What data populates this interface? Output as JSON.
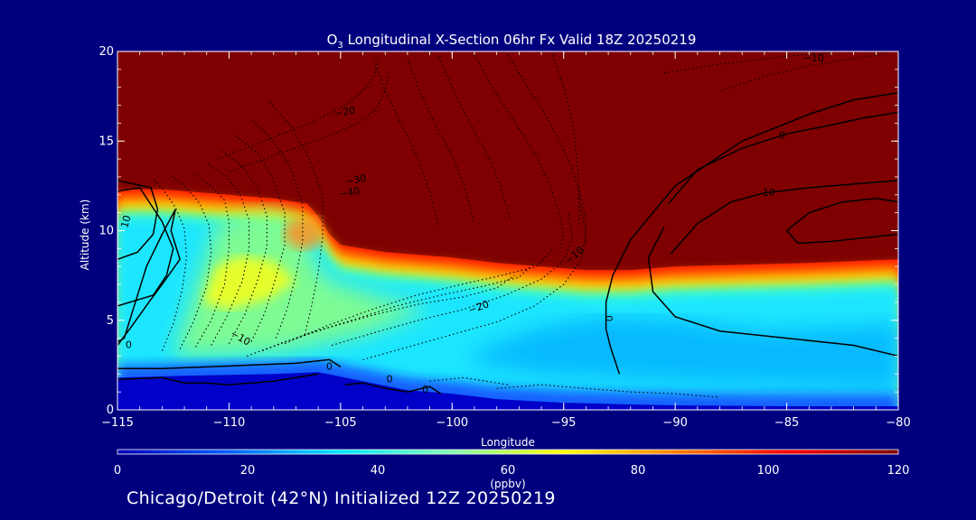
{
  "title_parts": {
    "species": "O",
    "subscript": "3",
    "rest": " Longitudinal X-Section 06hr  Fx Valid 18Z 20250219"
  },
  "caption": "Chicago/Detroit (42°N) Initialized 12Z 20250219",
  "colors": {
    "background": "#00007f",
    "axis": "#ffffff",
    "contour": "#000000",
    "colormap": [
      "#0000b4",
      "#0060ff",
      "#00e8ff",
      "#7fffb0",
      "#ffff00",
      "#ff7f00",
      "#ff0000",
      "#7f0000"
    ]
  },
  "chart_data": {
    "type": "heatmap",
    "title": "O3 Longitudinal X-Section 06hr  Fx Valid 18Z 20250219",
    "xlabel": "Longitude",
    "ylabel": "Altitude (km)",
    "xlim": [
      -115,
      -80
    ],
    "ylim": [
      0,
      20
    ],
    "x_ticks": [
      -115,
      -110,
      -105,
      -100,
      -95,
      -90,
      -85,
      -80
    ],
    "x_tick_labels": [
      "−115",
      "−110",
      "−105",
      "−100",
      "−95",
      "−90",
      "−85",
      "−80"
    ],
    "y_ticks": [
      0,
      5,
      10,
      15,
      20
    ],
    "y_tick_labels": [
      "0",
      "5",
      "10",
      "15",
      "20"
    ],
    "colorbar": {
      "label": "(ppbv)",
      "range": [
        0,
        120
      ],
      "ticks": [
        0,
        20,
        40,
        60,
        80,
        100,
        120
      ],
      "tick_labels": [
        "0",
        "20",
        "40",
        "60",
        "80",
        "100",
        "120"
      ]
    },
    "ozone_field": {
      "description": "approximate ozone (ppbv) regions in data units",
      "tropopause_km": {
        "lon": [
          -115,
          -113,
          -110,
          -108,
          -106.5,
          -106,
          -105.5,
          -105,
          -103,
          -100,
          -98,
          -96,
          -94,
          -92,
          -90,
          -87,
          -84,
          -82,
          -80
        ],
        "alt": [
          12.3,
          12.3,
          12.0,
          11.8,
          11.5,
          10.8,
          9.8,
          9.2,
          8.8,
          8.5,
          8.2,
          8.0,
          7.8,
          7.8,
          8.0,
          8.1,
          8.2,
          8.3,
          8.4
        ]
      },
      "surface_km": {
        "lon": [
          -115,
          -112,
          -108,
          -106,
          -104,
          -102,
          -100,
          -98,
          -95,
          -92,
          -90,
          -85,
          -80
        ],
        "alt": [
          1.8,
          1.9,
          2.0,
          2.1,
          1.6,
          1.1,
          0.9,
          0.6,
          0.4,
          0.3,
          0.25,
          0.2,
          0.2
        ]
      }
    },
    "contour_labels": [
      {
        "text": "10",
        "lon": -114.6,
        "alt": 10.5,
        "rot": -75
      },
      {
        "text": "0",
        "lon": -114.5,
        "alt": 3.6,
        "rot": 0
      },
      {
        "text": "−10",
        "lon": -109.5,
        "alt": 4.0,
        "rot": 30
      },
      {
        "text": "−20",
        "lon": -104.8,
        "alt": 16.6,
        "rot": -10
      },
      {
        "text": "−30",
        "lon": -104.3,
        "alt": 12.8,
        "rot": -10
      },
      {
        "text": "−40",
        "lon": -104.6,
        "alt": 12.1,
        "rot": -10
      },
      {
        "text": "−20",
        "lon": -98.8,
        "alt": 5.7,
        "rot": -20
      },
      {
        "text": "−10",
        "lon": -94.5,
        "alt": 8.6,
        "rot": -40
      },
      {
        "text": "−10",
        "lon": -83.8,
        "alt": 19.6,
        "rot": 0
      },
      {
        "text": "0",
        "lon": -85.2,
        "alt": 15.3,
        "rot": 0
      },
      {
        "text": "10",
        "lon": -85.8,
        "alt": 12.1,
        "rot": 0
      },
      {
        "text": "0",
        "lon": -93.0,
        "alt": 5.1,
        "rot": 90
      },
      {
        "text": "0",
        "lon": -105.5,
        "alt": 2.4,
        "rot": 0
      },
      {
        "text": "0",
        "lon": -102.8,
        "alt": 1.7,
        "rot": 0
      },
      {
        "text": "0",
        "lon": -101.2,
        "alt": 1.1,
        "rot": 0
      }
    ],
    "solid_contours": [
      {
        "lon": [
          -115,
          -113.5,
          -113.2,
          -113.4,
          -114.1,
          -115
        ],
        "alt": [
          12.8,
          12.4,
          11.2,
          9.8,
          8.8,
          8.4
        ]
      },
      {
        "lon": [
          -115,
          -114.0,
          -113.0,
          -112.5,
          -112.8,
          -113.4,
          -115
        ],
        "alt": [
          12.2,
          12.4,
          10.5,
          9.0,
          7.5,
          6.4,
          5.8
        ]
      },
      {
        "lon": [
          -115,
          -114.7,
          -114.3,
          -113.7,
          -113.0,
          -112.4,
          -112.6,
          -112.2,
          -113.0,
          -113.6,
          -114.4,
          -115
        ],
        "alt": [
          3.8,
          4.0,
          5.6,
          8.0,
          9.8,
          11.2,
          10.0,
          8.4,
          7.0,
          6.0,
          4.6,
          3.6
        ]
      },
      {
        "lon": [
          -115,
          -113,
          -111,
          -109,
          -107,
          -105.5,
          -105
        ],
        "alt": [
          2.3,
          2.3,
          2.4,
          2.5,
          2.6,
          2.8,
          2.4
        ]
      },
      {
        "lon": [
          -115,
          -113,
          -112,
          -111,
          -110,
          -108,
          -106
        ],
        "alt": [
          1.7,
          1.8,
          1.5,
          1.5,
          1.4,
          1.6,
          2.0
        ]
      },
      {
        "lon": [
          -104.8,
          -104,
          -103,
          -102,
          -101,
          -100.5
        ],
        "alt": [
          1.4,
          1.5,
          1.2,
          1.0,
          1.3,
          0.9
        ]
      },
      {
        "lon": [
          -92.5,
          -92.9,
          -93.1,
          -93.1,
          -92.8,
          -92.0,
          -90.0,
          -87.0,
          -84.0,
          -82.0,
          -80.0
        ],
        "alt": [
          2.0,
          3.5,
          4.5,
          6.0,
          7.5,
          9.5,
          12.5,
          15.0,
          16.5,
          17.3,
          17.7
        ]
      },
      {
        "lon": [
          -80,
          -82,
          -85,
          -88,
          -90,
          -91.0,
          -91.2,
          -90.5
        ],
        "alt": [
          3.0,
          3.6,
          4.0,
          4.4,
          5.2,
          6.6,
          8.5,
          10.2
        ]
      },
      {
        "lon": [
          -90.3,
          -89.0,
          -87.0,
          -85.0,
          -83.0,
          -81.5,
          -80.0
        ],
        "alt": [
          11.5,
          13.4,
          14.6,
          15.4,
          15.9,
          16.3,
          16.6
        ]
      },
      {
        "lon": [
          -90.2,
          -89.0,
          -87.5,
          -86.0,
          -84.0,
          -82.0,
          -80.0
        ],
        "alt": [
          8.7,
          10.4,
          11.6,
          12.1,
          12.4,
          12.6,
          12.8
        ]
      },
      {
        "lon": [
          -80,
          -81.0,
          -82.5,
          -84.0,
          -85.0,
          -84.5,
          -83.0,
          -81.5,
          -80.0
        ],
        "alt": [
          11.6,
          11.8,
          11.6,
          11.0,
          10.0,
          9.3,
          9.4,
          9.6,
          9.8
        ]
      }
    ],
    "dotted_contours": [
      {
        "lon": [
          -111.5,
          -110.8,
          -110.2,
          -110.0,
          -110.0,
          -110.2,
          -110.8,
          -111.6
        ],
        "alt": [
          3.5,
          5.0,
          7.0,
          9.0,
          10.5,
          11.7,
          12.5,
          13.2
        ]
      },
      {
        "lon": [
          -110.8,
          -110.1,
          -109.4,
          -109.1,
          -109.1,
          -109.5,
          -110.1,
          -111.0
        ],
        "alt": [
          3.6,
          5.2,
          7.2,
          9.0,
          10.6,
          12.0,
          13.0,
          13.8
        ]
      },
      {
        "lon": [
          -110.0,
          -109.3,
          -108.7,
          -108.3,
          -108.3,
          -108.7,
          -109.4,
          -110.4
        ],
        "alt": [
          3.7,
          5.3,
          7.3,
          9.1,
          10.8,
          12.3,
          13.6,
          14.5
        ]
      },
      {
        "lon": [
          -109.0,
          -108.4,
          -107.9,
          -107.5,
          -107.5,
          -108.0,
          -108.7,
          -109.7
        ],
        "alt": [
          3.8,
          5.4,
          7.4,
          9.2,
          11.0,
          12.8,
          14.3,
          15.3
        ]
      },
      {
        "lon": [
          -107.9,
          -107.4,
          -107.0,
          -106.7,
          -106.7,
          -107.2,
          -108.0,
          -109.0
        ],
        "alt": [
          4.0,
          5.6,
          7.5,
          9.4,
          11.4,
          13.4,
          15.0,
          16.2
        ]
      },
      {
        "lon": [
          -106.6,
          -106.3,
          -106.0,
          -105.8,
          -105.8,
          -106.4,
          -107.2,
          -108.2
        ],
        "alt": [
          4.2,
          5.8,
          7.7,
          9.7,
          11.9,
          14.0,
          15.8,
          17.2
        ]
      },
      {
        "lon": [
          -112.2,
          -111.6,
          -111.0,
          -110.8,
          -110.9,
          -111.3,
          -111.9,
          -112.6
        ],
        "alt": [
          3.4,
          4.9,
          6.9,
          8.8,
          10.3,
          11.5,
          12.4,
          13.1
        ]
      },
      {
        "lon": [
          -113.0,
          -112.5,
          -112.1,
          -111.9,
          -112.0,
          -112.4,
          -112.9,
          -113.4
        ],
        "alt": [
          3.3,
          4.8,
          6.7,
          8.5,
          10.1,
          11.3,
          12.2,
          12.9
        ]
      },
      {
        "lon": [
          -109.2,
          -107.5,
          -105.5,
          -103.5,
          -101.5,
          -99.5,
          -98.0,
          -97.2
        ],
        "alt": [
          3.0,
          3.8,
          4.6,
          5.3,
          5.9,
          6.3,
          6.8,
          7.5
        ]
      },
      {
        "lon": [
          -108.5,
          -106.6,
          -104.5,
          -102.5,
          -100.5,
          -98.6,
          -97.0,
          -96.3
        ],
        "alt": [
          3.3,
          4.2,
          5.0,
          5.8,
          6.4,
          6.9,
          7.4,
          8.2
        ]
      },
      {
        "lon": [
          -107.5,
          -105.6,
          -103.6,
          -101.6,
          -99.6,
          -97.8,
          -96.2,
          -95.5
        ],
        "alt": [
          3.7,
          4.7,
          5.6,
          6.4,
          7.0,
          7.5,
          8.0,
          9.0
        ]
      },
      {
        "lon": [
          -105.4,
          -103.5,
          -101.5,
          -99.5,
          -97.6,
          -96.0,
          -95.0,
          -94.6,
          -94.8
        ],
        "alt": [
          3.6,
          4.3,
          5.0,
          5.6,
          6.4,
          7.3,
          8.3,
          9.6,
          11.0
        ]
      },
      {
        "lon": [
          -104.0,
          -102.0,
          -100.0,
          -98.0,
          -96.3,
          -95.0,
          -94.2,
          -94.0,
          -94.4
        ],
        "alt": [
          2.8,
          3.5,
          4.2,
          4.9,
          5.8,
          7.0,
          8.4,
          10.0,
          12.0
        ]
      },
      {
        "lon": [
          -99.0,
          -98.3,
          -97.3,
          -96.3,
          -95.6,
          -95.2,
          -95.0,
          -95.2
        ],
        "alt": [
          19.8,
          18.2,
          16.3,
          14.3,
          12.5,
          11.0,
          9.8,
          8.8
        ]
      },
      {
        "lon": [
          -97.5,
          -96.6,
          -95.6,
          -94.8,
          -94.3,
          -94.0,
          -94.0
        ],
        "alt": [
          19.8,
          18.0,
          16.0,
          14.0,
          12.2,
          10.6,
          9.2
        ]
      },
      {
        "lon": [
          -95.5,
          -95.0,
          -94.6,
          -94.4,
          -94.3,
          -94.3
        ],
        "alt": [
          19.8,
          18.0,
          16.0,
          14.0,
          12.0,
          10.2
        ]
      },
      {
        "lon": [
          -103.5,
          -103.0,
          -102.3,
          -101.6,
          -101.0,
          -100.6
        ],
        "alt": [
          19.5,
          17.8,
          16.0,
          14.2,
          12.2,
          10.2
        ]
      },
      {
        "lon": [
          -102.0,
          -101.5,
          -100.8,
          -100.0,
          -99.4,
          -99.0
        ],
        "alt": [
          19.6,
          17.9,
          16.0,
          14.2,
          12.3,
          10.4
        ]
      },
      {
        "lon": [
          -100.6,
          -100.0,
          -99.2,
          -98.4,
          -97.8,
          -97.4
        ],
        "alt": [
          19.7,
          18.0,
          16.0,
          14.2,
          12.4,
          10.6
        ]
      },
      {
        "lon": [
          -110.5,
          -108.0,
          -106.0,
          -104.8,
          -104.0,
          -103.5,
          -103.3
        ],
        "alt": [
          14.0,
          15.2,
          16.2,
          17.0,
          17.8,
          18.6,
          19.6
        ]
      },
      {
        "lon": [
          -110.0,
          -107.5,
          -105.5,
          -104.2,
          -103.4,
          -103.0,
          -102.8
        ],
        "alt": [
          13.3,
          14.4,
          15.3,
          16.0,
          16.8,
          17.8,
          19.0
        ]
      },
      {
        "lon": [
          -88.0,
          -86.0,
          -84.0,
          -82.5,
          -81.5,
          -80.5
        ],
        "alt": [
          17.8,
          18.6,
          19.2,
          19.5,
          19.7,
          19.9
        ]
      },
      {
        "lon": [
          -90.5,
          -88.0,
          -86.0,
          -84.5,
          -83.0
        ],
        "alt": [
          18.8,
          19.3,
          19.6,
          19.8,
          19.9
        ]
      },
      {
        "lon": [
          -98.0,
          -96.0,
          -94.0,
          -92.0,
          -90.0,
          -88.0
        ],
        "alt": [
          1.2,
          1.4,
          1.2,
          1.0,
          0.9,
          0.7
        ]
      },
      {
        "lon": [
          -101.0,
          -99.5,
          -98.5,
          -97.5
        ],
        "alt": [
          1.6,
          1.8,
          1.6,
          1.4
        ]
      }
    ]
  }
}
